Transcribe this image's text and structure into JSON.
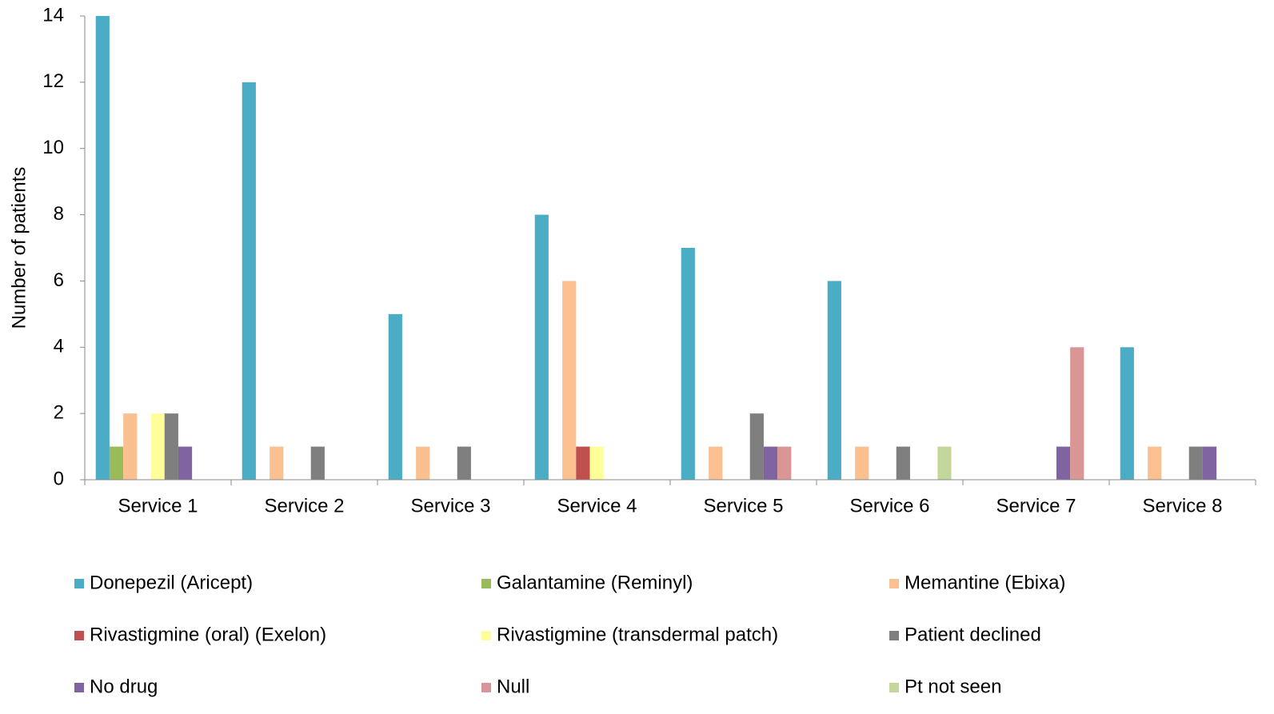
{
  "chart_data": {
    "type": "bar",
    "y_label": "Number of patients",
    "categories": [
      "Service 1",
      "Service 2",
      "Service 3",
      "Service 4",
      "Service 5",
      "Service 6",
      "Service 7",
      "Service 8"
    ],
    "series": [
      {
        "name": "Donepezil (Aricept)",
        "color": "#4bacc6",
        "values": [
          14,
          12,
          5,
          8,
          7,
          6,
          0,
          4
        ]
      },
      {
        "name": "Galantamine (Reminyl)",
        "color": "#9bbb59",
        "values": [
          1,
          0,
          0,
          0,
          0,
          0,
          0,
          0
        ]
      },
      {
        "name": "Memantine (Ebixa)",
        "color": "#fac090",
        "values": [
          2,
          1,
          1,
          6,
          1,
          1,
          0,
          1
        ]
      },
      {
        "name": "Rivastigmine (oral) (Exelon)",
        "color": "#c0504d",
        "values": [
          0,
          0,
          0,
          1,
          0,
          0,
          0,
          0
        ]
      },
      {
        "name": "Rivastigmine (transdermal patch)",
        "color": "#ffff99",
        "values": [
          2,
          0,
          0,
          1,
          0,
          0,
          0,
          0
        ]
      },
      {
        "name": "Patient declined",
        "color": "#7f7f7f",
        "values": [
          2,
          1,
          1,
          0,
          2,
          1,
          0,
          1
        ]
      },
      {
        "name": "No drug",
        "color": "#8064a2",
        "values": [
          1,
          0,
          0,
          0,
          1,
          0,
          1,
          1
        ]
      },
      {
        "name": "Null",
        "color": "#d99694",
        "values": [
          0,
          0,
          0,
          0,
          1,
          0,
          4,
          0
        ]
      },
      {
        "name": "Pt not seen",
        "color": "#c3d69b",
        "values": [
          0,
          0,
          0,
          0,
          0,
          1,
          0,
          0
        ]
      }
    ],
    "ylim": [
      0,
      14
    ],
    "yticks": [
      0,
      2,
      4,
      6,
      8,
      10,
      12,
      14
    ],
    "grid": false,
    "legend": "bottom"
  }
}
